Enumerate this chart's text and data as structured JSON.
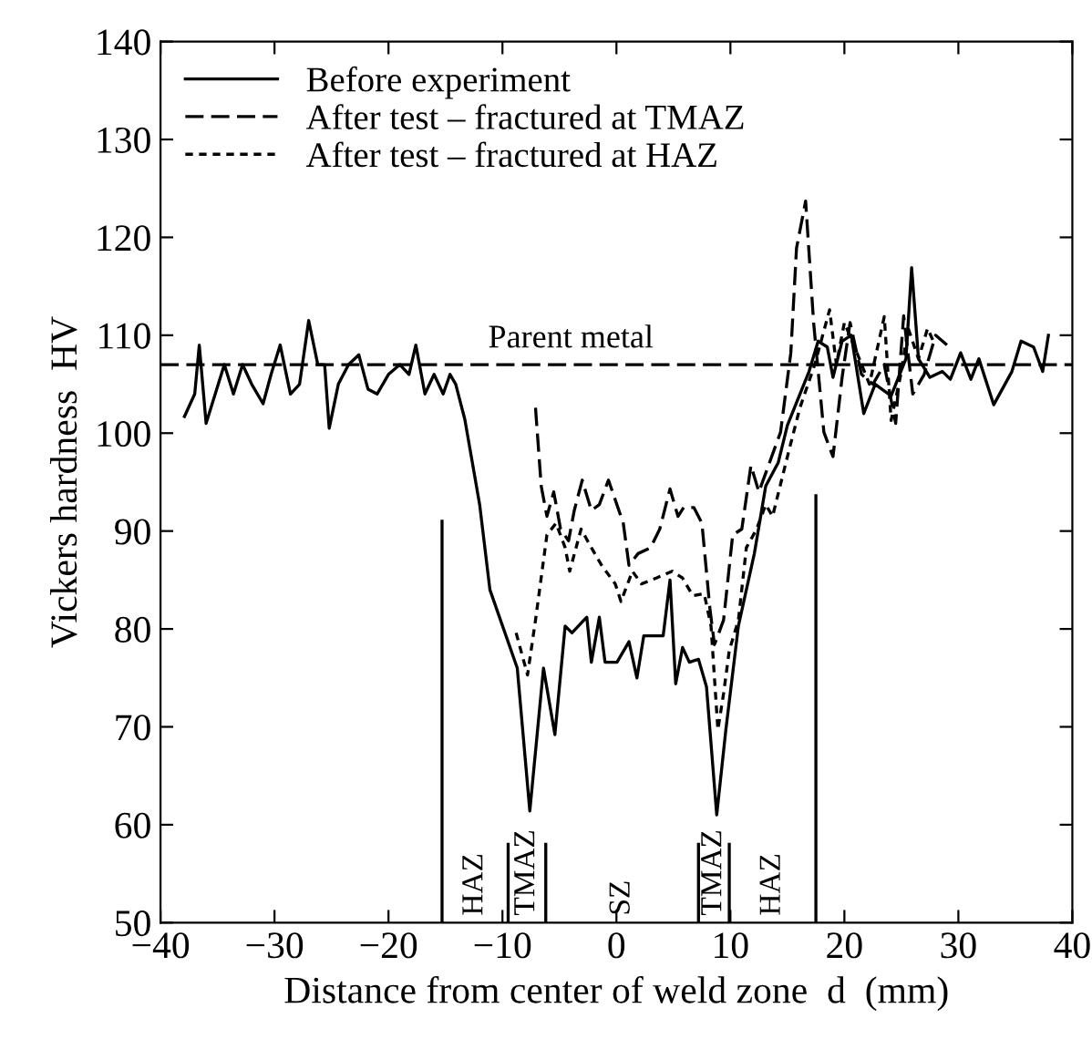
{
  "chart_data": {
    "type": "line",
    "xlabel": "Distance from center of weld zone  d  (mm)",
    "ylabel": "Vickers hardness  HV",
    "xlim": [
      -40,
      40
    ],
    "ylim": [
      50,
      140
    ],
    "xticks": [
      -40,
      -30,
      -20,
      -10,
      0,
      10,
      20,
      30,
      40
    ],
    "yticks": [
      50,
      60,
      70,
      80,
      90,
      100,
      110,
      120,
      130,
      140
    ],
    "grid": false,
    "legend": "top left",
    "marker": "none",
    "series": [
      {
        "name": "Before experiment",
        "color": "#000000",
        "line_style": "solid",
        "x": [
          -37.9,
          -37,
          -36.6,
          -36,
          -35.2,
          -34.4,
          -33.6,
          -32.8,
          -32,
          -31,
          -30.3,
          -29.5,
          -28.6,
          -27.8,
          -27,
          -26.2,
          -25.6,
          -25.2,
          -24.4,
          -23.5,
          -22.6,
          -21.8,
          -21,
          -20,
          -19,
          -18.2,
          -17.6,
          -16.8,
          -16,
          -15.2,
          -14.6,
          -14.1,
          -13.3,
          -12.0,
          -11.1,
          -8.7,
          -7.6,
          -6.4,
          -5.4,
          -4.5,
          -3.9,
          -2.6,
          -2.2,
          -1.5,
          -1.0,
          0.05,
          1.1,
          1.8,
          2.4,
          4.1,
          4.7,
          5.2,
          5.8,
          6.4,
          7.2,
          7.9,
          8.8,
          9.6,
          10.7,
          12.1,
          13.1,
          14.2,
          15.0,
          16.9,
          17.7,
          18.5,
          19.0,
          19.8,
          20.6,
          21.7,
          22.7,
          24.1,
          25.4,
          25.9,
          26.5,
          27.5,
          28.6,
          29.3,
          30.2,
          31.1,
          31.8,
          33.1,
          34.7,
          35.5,
          36.6,
          37.4,
          37.9
        ],
        "values": [
          101.7,
          104,
          109,
          101,
          104,
          107,
          104,
          107,
          105,
          103,
          106,
          109,
          104,
          105,
          111.5,
          107,
          107,
          100.5,
          105,
          107,
          108,
          104.5,
          104,
          106,
          107,
          106,
          109,
          104,
          106,
          104,
          106,
          105,
          101.4,
          92.7,
          84,
          76,
          61.4,
          76,
          69.2,
          80.3,
          79.6,
          81.2,
          76.6,
          81.2,
          76.6,
          76.6,
          78.7,
          75,
          79.3,
          79.3,
          85,
          74.4,
          78.1,
          76.6,
          76.9,
          74.1,
          61,
          69.7,
          80.3,
          87.7,
          94.6,
          97,
          100.8,
          106.3,
          109.4,
          108.8,
          105.7,
          109.4,
          110,
          102,
          105,
          103.8,
          107.6,
          116.9,
          107.6,
          105.7,
          106.3,
          105.5,
          108.2,
          105.5,
          107.6,
          102.9,
          106.3,
          109.4,
          108.8,
          106.3,
          110
        ]
      },
      {
        "name": "After test – fractured at TMAZ",
        "color": "#000000",
        "line_style": "dashed",
        "x": [
          -7.1,
          -6.6,
          -6.1,
          -5.5,
          -4.9,
          -4.2,
          -3.7,
          -3.0,
          -2.2,
          -1.5,
          -0.7,
          0.6,
          1.1,
          1.9,
          3.0,
          3.8,
          4.7,
          5.4,
          5.9,
          6.8,
          7.5,
          8.2,
          8.6,
          9.4,
          10.2,
          11.0,
          11.8,
          12.5,
          14.4,
          15.3,
          15.8,
          16.6,
          17.3,
          18.2,
          19.0,
          19.8,
          20.5,
          21.5,
          22.5,
          23.5,
          24.5,
          25.2,
          26,
          27,
          28,
          29
        ],
        "values": [
          102.6,
          94.6,
          91.5,
          94,
          90.2,
          89,
          92.1,
          95.2,
          92.1,
          92.7,
          95.2,
          90.8,
          86.5,
          87.7,
          88.3,
          90.2,
          94.3,
          91.5,
          92.4,
          92.4,
          90.8,
          82.1,
          78.4,
          80.9,
          89.6,
          90.2,
          96.7,
          94,
          100.1,
          108.2,
          118.9,
          123.7,
          111.3,
          100.1,
          97.6,
          105.7,
          111.3,
          106,
          105,
          107,
          101,
          112,
          104,
          106,
          110,
          109
        ]
      },
      {
        "name": "After test – fractured at HAZ",
        "color": "#000000",
        "line_style": "dotted",
        "x": [
          -8.8,
          -7.8,
          -7.1,
          -6.1,
          -5.3,
          -4.5,
          -4.1,
          -3.1,
          -2.2,
          -1.3,
          -0.1,
          0.4,
          1.4,
          2.2,
          3.5,
          4.9,
          5.8,
          6.7,
          7.7,
          8.3,
          8.9,
          9.4,
          9.9,
          10.7,
          11.4,
          12.3,
          13.1,
          13.7,
          15.0,
          16.1,
          17.4,
          18.7,
          19.3,
          20.0,
          21.1,
          22.2,
          23.5,
          24.1,
          24.9,
          25.6,
          26.5,
          27.3,
          27.8
        ],
        "values": [
          79.6,
          75.3,
          80.9,
          89.6,
          90.8,
          88.3,
          85.9,
          90.2,
          88.3,
          86.5,
          84.6,
          82.8,
          85.9,
          84.6,
          85.2,
          85.9,
          85.2,
          83.4,
          83.6,
          80.3,
          69.7,
          73.4,
          77.8,
          80.9,
          88.3,
          90.2,
          92.7,
          91.5,
          97.6,
          102.6,
          107,
          112.6,
          107,
          111.3,
          108.2,
          105,
          111.9,
          101.3,
          105.7,
          110.7,
          107.6,
          110.7,
          109.4
        ]
      },
      {
        "color": "#000000",
        "line_style": "solid",
        "x": [
          -15.3,
          -15.3
        ],
        "values": [
          50,
          91
        ]
      },
      {
        "color": "#000000",
        "line_style": "solid",
        "x": [
          17.5,
          17.5
        ],
        "values": [
          50,
          93.6
        ]
      },
      {
        "color": "#000000",
        "line_style": "solid",
        "x": [
          -9.5,
          -9.5
        ],
        "values": [
          50,
          58
        ]
      },
      {
        "color": "#000000",
        "line_style": "solid",
        "x": [
          -6.2,
          -6.2
        ],
        "values": [
          50,
          58
        ]
      },
      {
        "color": "#000000",
        "line_style": "solid",
        "x": [
          7.2,
          7.2
        ],
        "values": [
          50,
          58
        ]
      },
      {
        "color": "#000000",
        "line_style": "solid",
        "x": [
          9.9,
          9.9
        ],
        "values": [
          50,
          58
        ]
      }
    ],
    "ref_lines": [
      {
        "axis": "y",
        "value": 107,
        "label": "Parent metal",
        "color": "#000000",
        "line_style": "dashed"
      }
    ],
    "annotations": [
      "HAZ",
      "TMAZ",
      "SZ",
      "TMAZ",
      "HAZ"
    ]
  }
}
